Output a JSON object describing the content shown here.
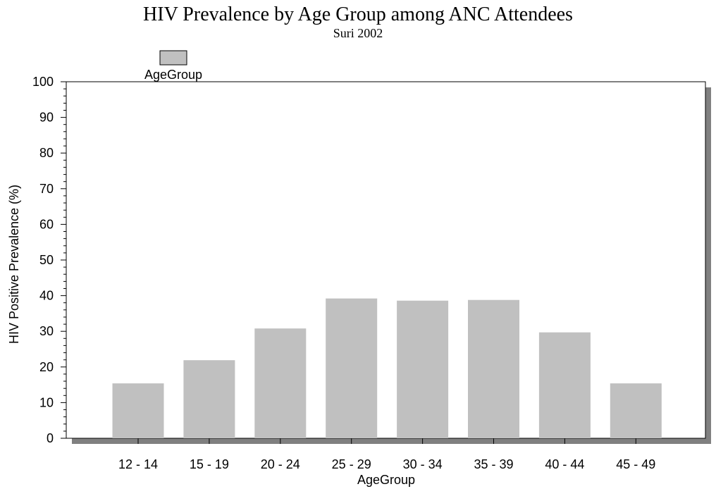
{
  "chart_data": {
    "type": "bar",
    "title": "HIV Prevalence by Age Group among ANC Attendees",
    "subtitle": "Suri 2002",
    "xlabel": "AgeGroup",
    "ylabel": "HIV Positive Prevalence (%)",
    "ylim": [
      0,
      100
    ],
    "yticks": [
      "0",
      "10",
      "20",
      "30",
      "40",
      "50",
      "60",
      "70",
      "80",
      "90",
      "100"
    ],
    "categories": [
      "12 - 14",
      "15 - 19",
      "20 - 24",
      "25 - 29",
      "30 - 34",
      "35 - 39",
      "40 - 44",
      "45 - 49"
    ],
    "series": [
      {
        "name": "AgeGroup",
        "values": [
          15.4,
          21.9,
          30.8,
          39.2,
          38.6,
          38.8,
          29.7,
          15.4
        ]
      }
    ],
    "legend_position": "top-left",
    "grid": false,
    "bar_color": "#c0c0c0",
    "frame_shadow_color": "#808080"
  }
}
